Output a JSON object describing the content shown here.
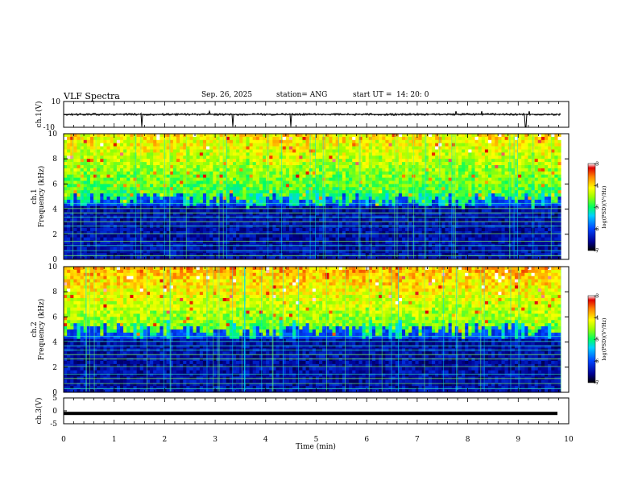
{
  "header": {
    "title": "VLF Spectra",
    "date": "Sep. 26, 2025",
    "station": "station= ANG",
    "start_label": "start  UT =",
    "start_time": "14: 20: 0"
  },
  "chart_data": {
    "type": "heatmap",
    "title": "VLF Spectra",
    "xlabel": "Time  (min)",
    "xlim": [
      0,
      10
    ],
    "x_ticks": [
      "0",
      "1",
      "2",
      "3",
      "4",
      "5",
      "6",
      "7",
      "8",
      "9",
      "10"
    ],
    "data_end_min": 9.85,
    "panels": [
      {
        "name": "ch1-waveform",
        "type": "line",
        "ylabel": "ch.1(V)",
        "ylim": [
          -10,
          10
        ],
        "y_ticks": [
          "10",
          "-10"
        ],
        "baseline": 0
      },
      {
        "name": "ch1-spectrogram",
        "type": "heatmap",
        "ylabel_top": "ch.1",
        "ylabel": "Frequency  (kHz)",
        "ylim": [
          0,
          10
        ],
        "y_ticks": [
          "0",
          "2",
          "4",
          "6",
          "8",
          "10"
        ],
        "quiet_band_top_khz": 4.8,
        "colorbar": {
          "label": "log(PSD)(V²/Hz)",
          "range": [
            -7,
            -3
          ],
          "ticks": [
            "-3",
            "-4",
            "-5",
            "-6",
            "-7"
          ]
        }
      },
      {
        "name": "ch2-spectrogram",
        "type": "heatmap",
        "ylabel_top": "ch.2",
        "ylabel": "Frequency  (kHz)",
        "ylim": [
          0,
          10
        ],
        "y_ticks": [
          "0",
          "2",
          "4",
          "6",
          "8",
          "10"
        ],
        "quiet_band_top_khz": 5.0,
        "colorbar": {
          "label": "log(PSD)(V²/Hz)",
          "range": [
            -7,
            -3
          ],
          "ticks": [
            "-3",
            "-4",
            "-5",
            "-6",
            "-7"
          ]
        }
      },
      {
        "name": "ch3-waveform",
        "type": "line",
        "ylabel": "ch.3(V)",
        "ylim": [
          -5,
          5
        ],
        "y_ticks": [
          "5",
          "0",
          "-5"
        ],
        "baseline": -1
      }
    ]
  }
}
